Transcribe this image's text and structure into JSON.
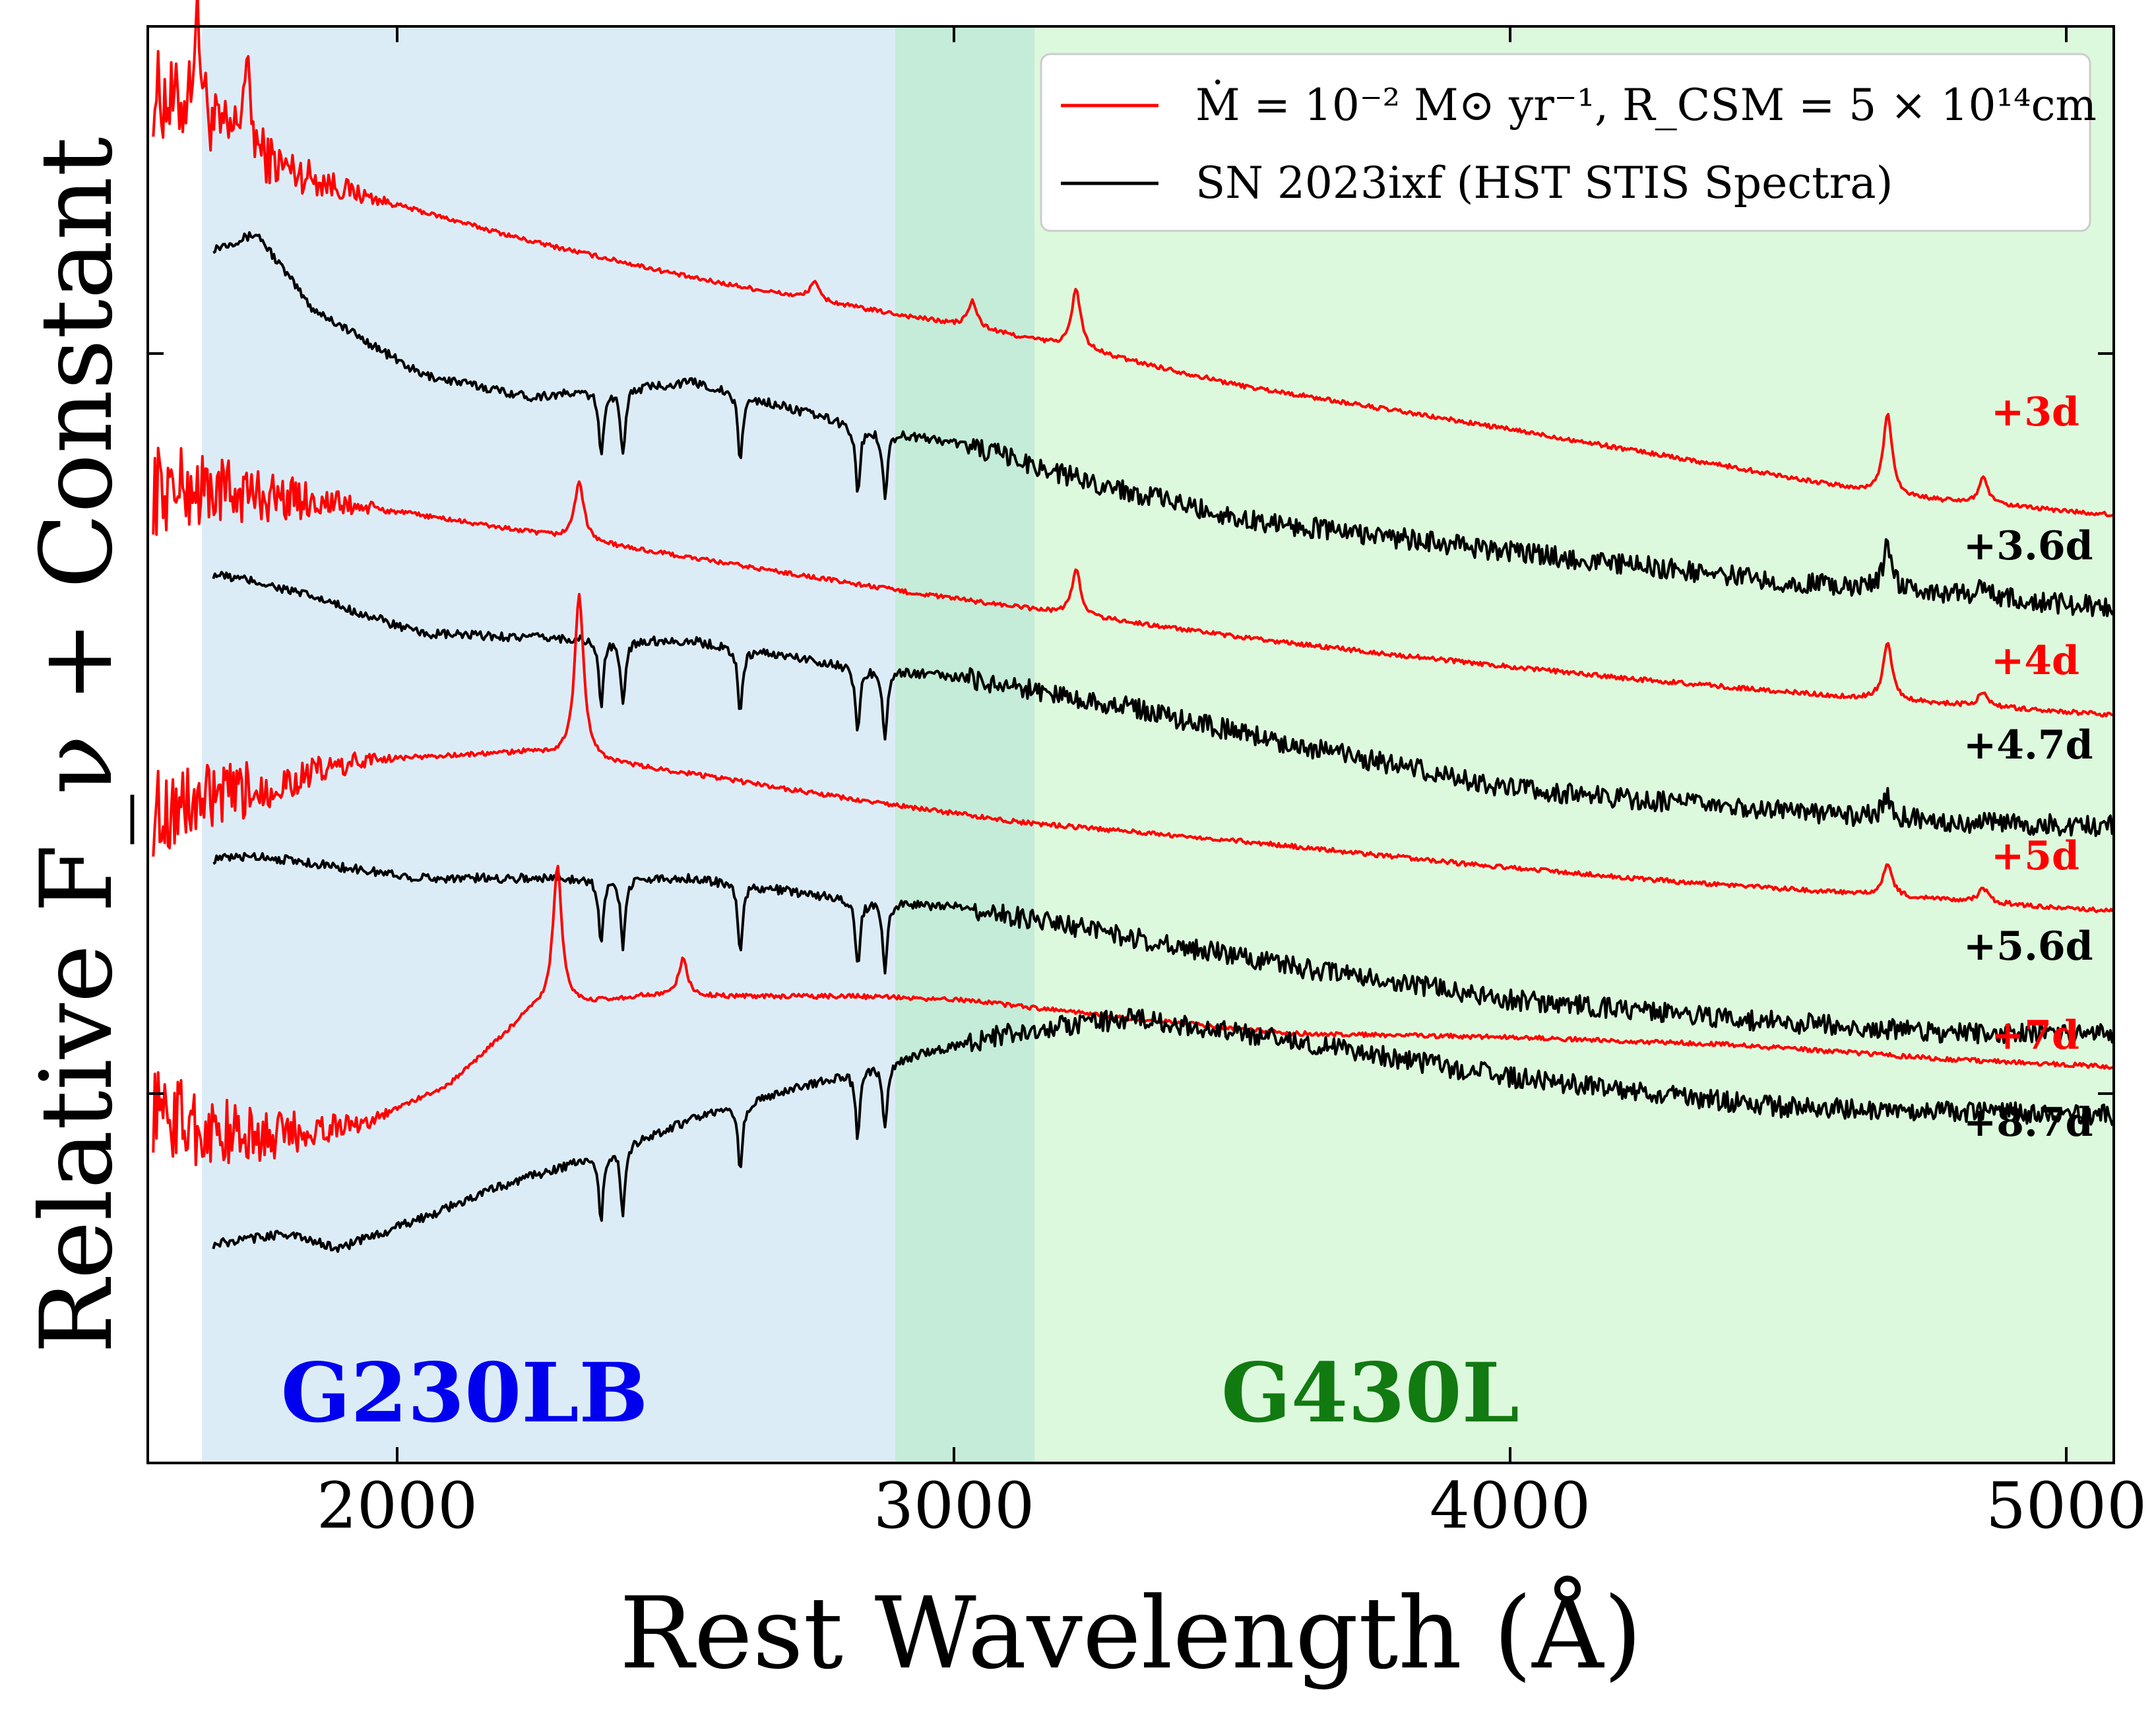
{
  "chart_data": {
    "type": "line",
    "xlabel": "Rest Wavelength (Å)",
    "ylabel": "Relative F_ν + Constant",
    "xlim": [
      1500,
      5100
    ],
    "x_ticks": [
      "2000",
      "3000",
      "4000",
      "5000"
    ],
    "y_ticks_labeled": false,
    "legend": {
      "position": "top-right",
      "entries": [
        {
          "label": "Ṁ = 10⁻² M⊙ yr⁻¹, R_CSM = 5 × 10¹⁴cm",
          "color": "#ff0000"
        },
        {
          "label": "SN 2023ixf (HST STIS Spectra)",
          "color": "#000000"
        }
      ]
    },
    "regions": [
      {
        "label": "G230LB",
        "x_range": [
          1600,
          3150
        ],
        "color": "#dcecf7",
        "label_color": "#0000ee"
      },
      {
        "label": "G430L",
        "x_range": [
          2900,
          5100
        ],
        "color": "#dcf8dc",
        "label_color": "#117a11"
      }
    ],
    "series": [
      {
        "name": "+3d",
        "kind": "model",
        "color": "#ff0000",
        "x": [
          1510,
          1580,
          1700,
          1900,
          2200,
          2500,
          2800,
          3000,
          3200,
          3500,
          4000,
          4400,
          4700,
          5100
        ],
        "y": [
          9.1,
          8.7,
          8.2,
          7.7,
          7.1,
          6.6,
          6.2,
          5.95,
          5.65,
          5.15,
          4.55,
          4.05,
          3.65,
          3.4
        ],
        "lines": [
          [
            1590,
            1.4
          ],
          [
            1680,
            1.1
          ],
          [
            2720,
            0.25
          ],
          [
            3010,
            0.35
          ],
          [
            3200,
            0.8
          ],
          [
            4686,
            1.1
          ],
          [
            4861,
            0.35
          ]
        ]
      },
      {
        "name": "+3.6d",
        "kind": "observed",
        "color": "#000000",
        "x": [
          1620,
          1700,
          1800,
          2000,
          2200,
          2500,
          2800,
          3000,
          3200,
          3500,
          4000,
          4500,
          5100
        ],
        "y": [
          7.0,
          7.2,
          6.2,
          5.3,
          5.0,
          5.2,
          4.6,
          4.35,
          3.9,
          3.35,
          2.9,
          2.5,
          2.15
        ],
        "lines": [
          [
            4686,
            0.6
          ],
          [
            4861,
            0.2
          ]
        ]
      },
      {
        "name": "+4d",
        "kind": "model",
        "color": "#ff0000",
        "x": [
          1510,
          1600,
          1800,
          2000,
          2300,
          2600,
          2900,
          3200,
          3500,
          3800,
          4200,
          4600,
          5100
        ],
        "y": [
          3.75,
          3.75,
          3.6,
          3.4,
          3.05,
          2.7,
          2.35,
          2.05,
          1.75,
          1.5,
          1.2,
          0.95,
          0.7
        ],
        "lines": [
          [
            2290,
            0.8
          ],
          [
            3200,
            0.6
          ],
          [
            4686,
            0.75
          ],
          [
            4861,
            0.2
          ]
        ]
      },
      {
        "name": "+4.7d",
        "kind": "observed",
        "color": "#000000",
        "x": [
          1620,
          1700,
          1800,
          2000,
          2200,
          2500,
          2800,
          3000,
          3300,
          3600,
          4000,
          4400,
          4800,
          5100
        ],
        "y": [
          2.6,
          2.5,
          2.3,
          1.8,
          1.75,
          1.7,
          1.35,
          1.2,
          0.8,
          0.3,
          -0.3,
          -0.55,
          -0.75,
          -0.8
        ],
        "lines": [
          [
            4686,
            0.3
          ]
        ]
      },
      {
        "name": "+5d",
        "kind": "model",
        "color": "#ff0000",
        "x": [
          1510,
          1650,
          1900,
          2200,
          2500,
          2800,
          3100,
          3500,
          3900,
          4300,
          4700,
          5100
        ],
        "y": [
          -0.6,
          -0.4,
          0.1,
          0.2,
          -0.1,
          -0.45,
          -0.75,
          -1.0,
          -1.3,
          -1.55,
          -1.75,
          -1.95
        ],
        "lines": [
          [
            2290,
            2.2
          ],
          [
            4686,
            0.45
          ],
          [
            4861,
            0.2
          ]
        ]
      },
      {
        "name": "+5.6d",
        "kind": "observed",
        "color": "#000000",
        "x": [
          1620,
          1700,
          1800,
          2000,
          2200,
          2500,
          2800,
          3000,
          3300,
          3600,
          4000,
          4400,
          4800,
          5100
        ],
        "y": [
          -1.25,
          -1.2,
          -1.3,
          -1.5,
          -1.5,
          -1.5,
          -1.8,
          -1.9,
          -2.3,
          -2.7,
          -3.15,
          -3.4,
          -3.6,
          -3.6
        ],
        "lines": []
      },
      {
        "name": "+7d",
        "kind": "model",
        "color": "#ff0000",
        "x": [
          1510,
          1600,
          1700,
          1900,
          2050,
          2200,
          2300,
          2400,
          2600,
          2800,
          3000,
          3300,
          3600,
          4000,
          4400,
          4800,
          5100
        ],
        "y": [
          -4.6,
          -4.9,
          -5.0,
          -4.8,
          -4.3,
          -3.3,
          -3.2,
          -3.1,
          -3.1,
          -3.1,
          -3.15,
          -3.4,
          -3.6,
          -3.65,
          -3.75,
          -3.95,
          -4.05
        ],
        "lines": [
          [
            2250,
            1.9
          ],
          [
            2480,
            0.5
          ]
        ]
      },
      {
        "name": "+8.7d",
        "kind": "observed",
        "color": "#000000",
        "x": [
          1620,
          1750,
          1850,
          2000,
          2150,
          2300,
          2500,
          2700,
          2900,
          3100,
          3300,
          3600,
          4000,
          4500,
          5100
        ],
        "y": [
          -6.45,
          -6.3,
          -6.5,
          -6.1,
          -5.65,
          -5.3,
          -4.75,
          -4.3,
          -3.9,
          -3.55,
          -3.4,
          -3.7,
          -4.2,
          -4.6,
          -4.7
        ],
        "lines": []
      }
    ],
    "absorption_lines_observed": [
      2330,
      2370,
      2585,
      2800,
      2850
    ]
  },
  "labels": {
    "xlabel": "Rest Wavelength (Å)",
    "ylabel": "Relative F_ν + Constant",
    "band1": "G230LB",
    "band2": "G430L",
    "legend1": "Ṁ = 10⁻² M⊙ yr⁻¹, R_CSM = 5 × 10¹⁴cm",
    "legend2": "SN 2023ixf (HST STIS Spectra)",
    "tick_2000": "2000",
    "tick_3000": "3000",
    "tick_4000": "4000",
    "tick_5000": "5000",
    "epoch_3d": "+3d",
    "epoch_36d": "+3.6d",
    "epoch_4d": "+4d",
    "epoch_47d": "+4.7d",
    "epoch_5d": "+5d",
    "epoch_56d": "+5.6d",
    "epoch_7d": "+7d",
    "epoch_87d": "+8.7d"
  }
}
